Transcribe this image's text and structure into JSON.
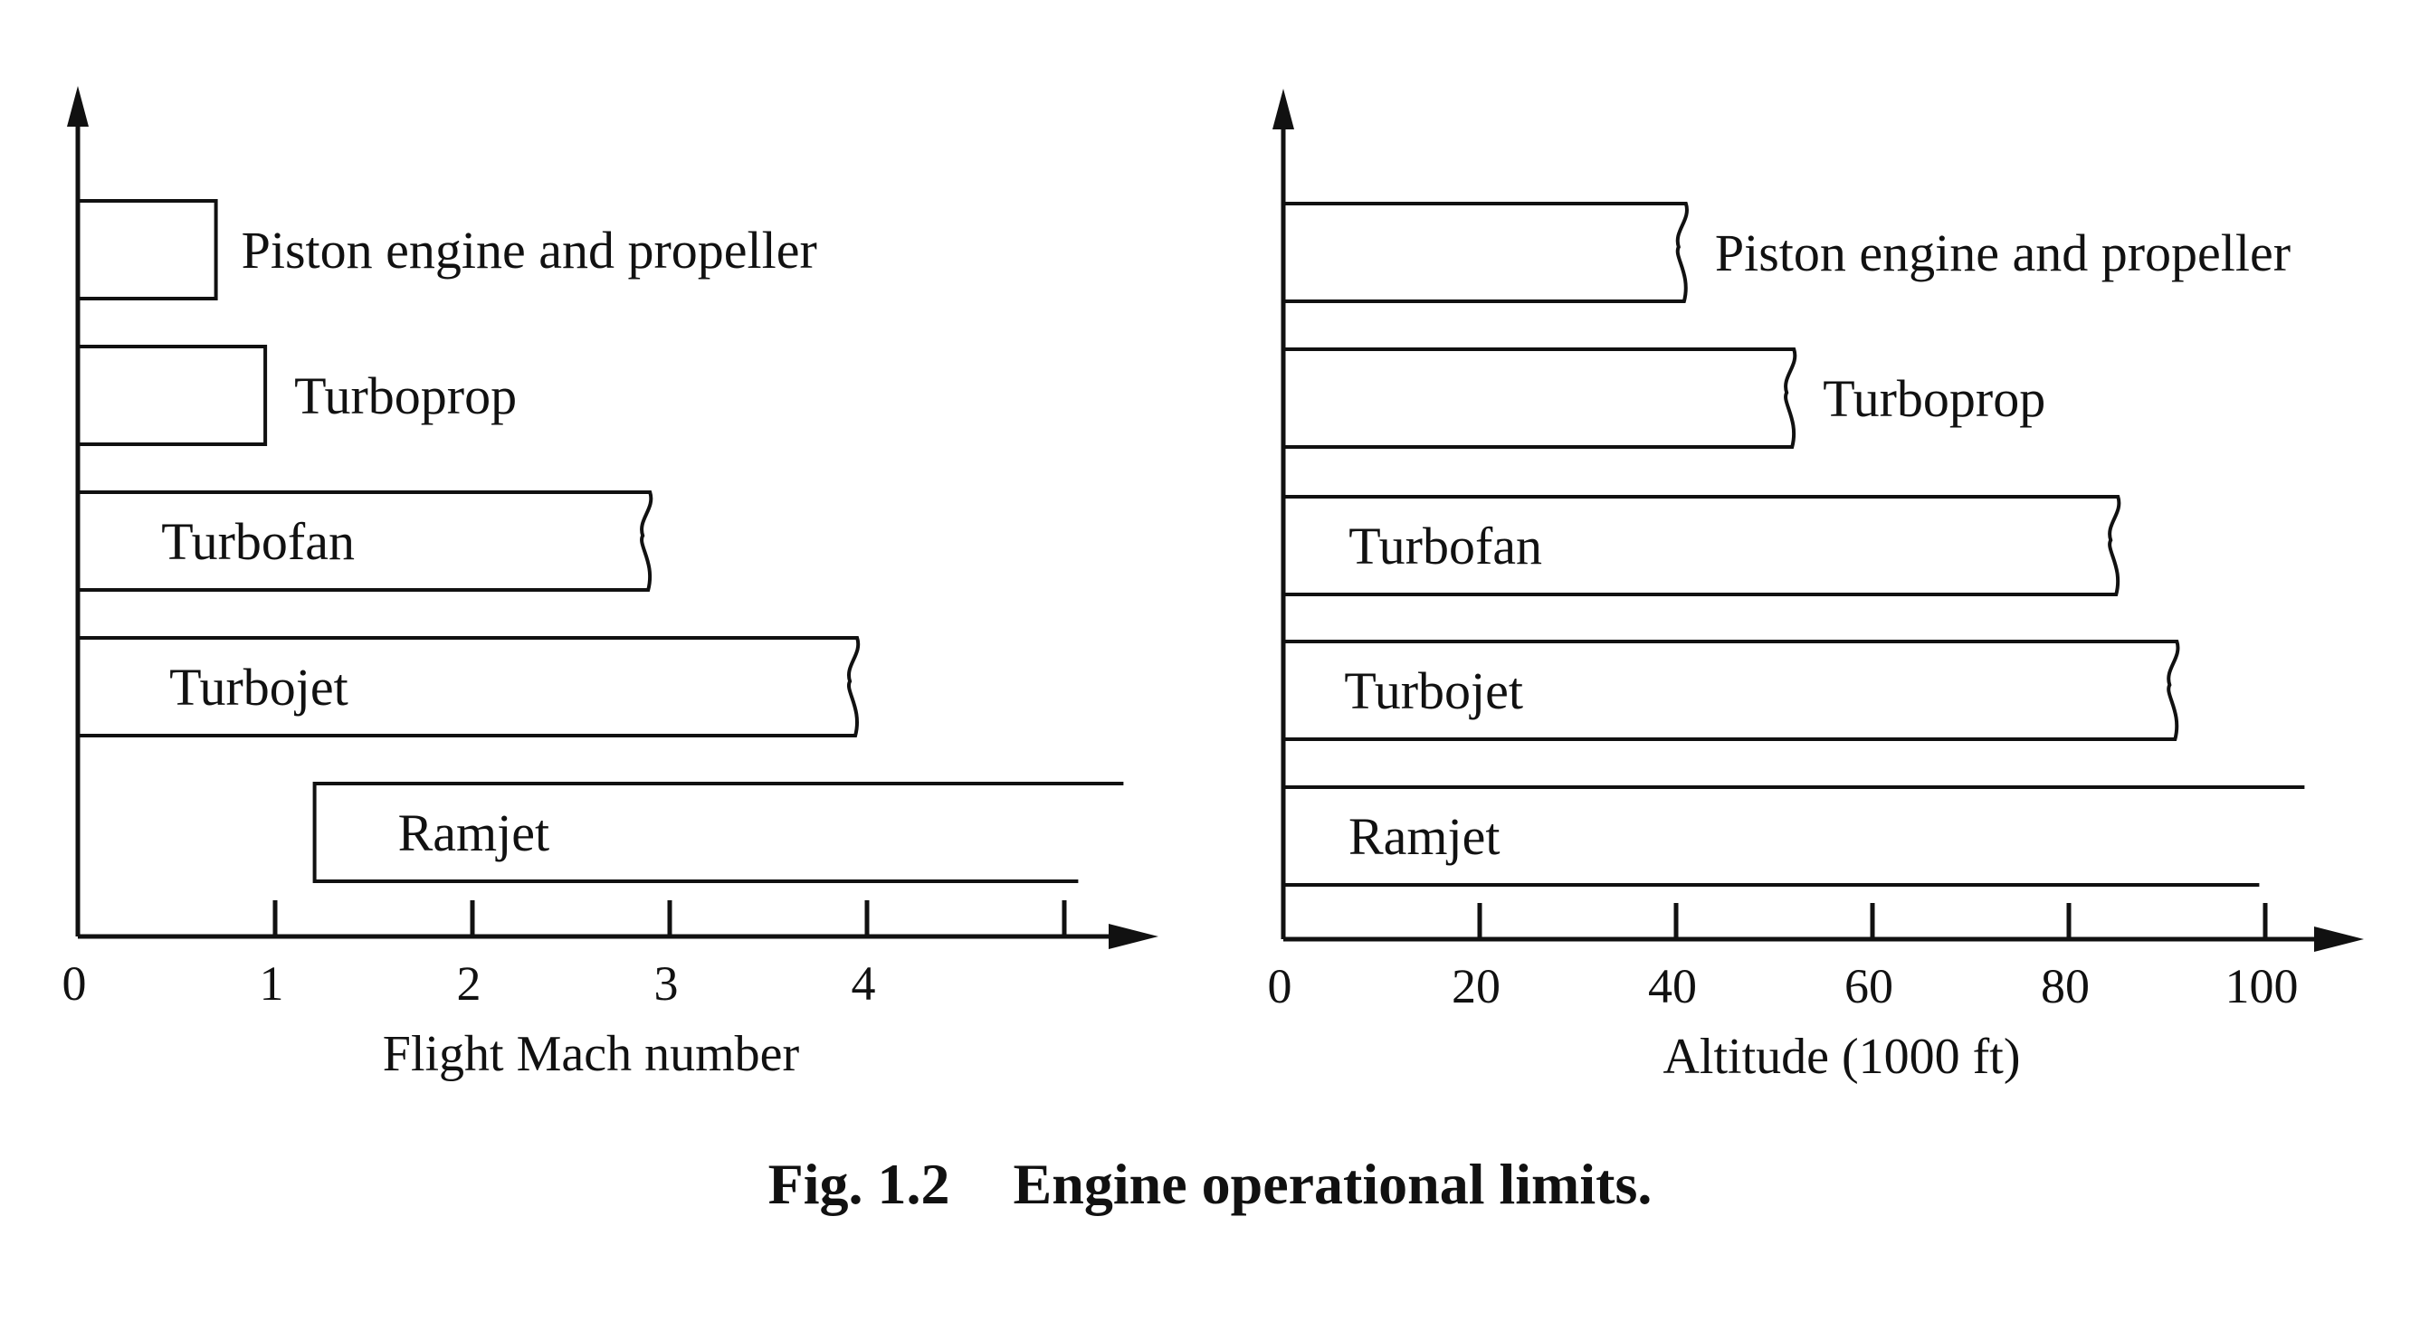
{
  "caption": {
    "number": "Fig. 1.2",
    "title": "Engine operational limits."
  },
  "chart_data": [
    {
      "type": "bar",
      "orientation": "horizontal",
      "title": "",
      "xlabel": "Flight Mach number",
      "ylabel": "",
      "xlim": [
        0,
        5.5
      ],
      "x_ticks": [
        0,
        1,
        2,
        3,
        4,
        5
      ],
      "x_tick_labels": [
        "0",
        "1",
        "2",
        "3",
        "4",
        ""
      ],
      "grid": false,
      "bars": [
        {
          "label": "Piston engine and propeller",
          "start": 0,
          "end": 0.7,
          "open_end": "none"
        },
        {
          "label": "Turboprop",
          "start": 0,
          "end": 0.95,
          "open_end": "none"
        },
        {
          "label": "Turbofan",
          "start": 0,
          "end": 2.9,
          "open_end": "wavy"
        },
        {
          "label": "Turbojet",
          "start": 0,
          "end": 3.95,
          "open_end": "wavy"
        },
        {
          "label": "Ramjet",
          "start": 1.2,
          "end": 5.3,
          "open_end": "open"
        }
      ]
    },
    {
      "type": "bar",
      "orientation": "horizontal",
      "title": "",
      "xlabel": "Altitude (1000 ft)",
      "ylabel": "",
      "xlim": [
        0,
        115
      ],
      "x_ticks": [
        0,
        20,
        40,
        60,
        80,
        100
      ],
      "x_tick_labels": [
        "0",
        "20",
        "40",
        "60",
        "80",
        "100"
      ],
      "grid": false,
      "bars": [
        {
          "label": "Piston engine and propeller",
          "start": 0,
          "end": 41,
          "open_end": "wavy"
        },
        {
          "label": "Turboprop",
          "start": 0,
          "end": 52,
          "open_end": "wavy"
        },
        {
          "label": "Turbofan",
          "start": 0,
          "end": 85,
          "open_end": "wavy"
        },
        {
          "label": "Turbojet",
          "start": 0,
          "end": 91,
          "open_end": "wavy"
        },
        {
          "label": "Ramjet",
          "start": 0,
          "end": 104,
          "open_end": "open"
        }
      ]
    }
  ]
}
